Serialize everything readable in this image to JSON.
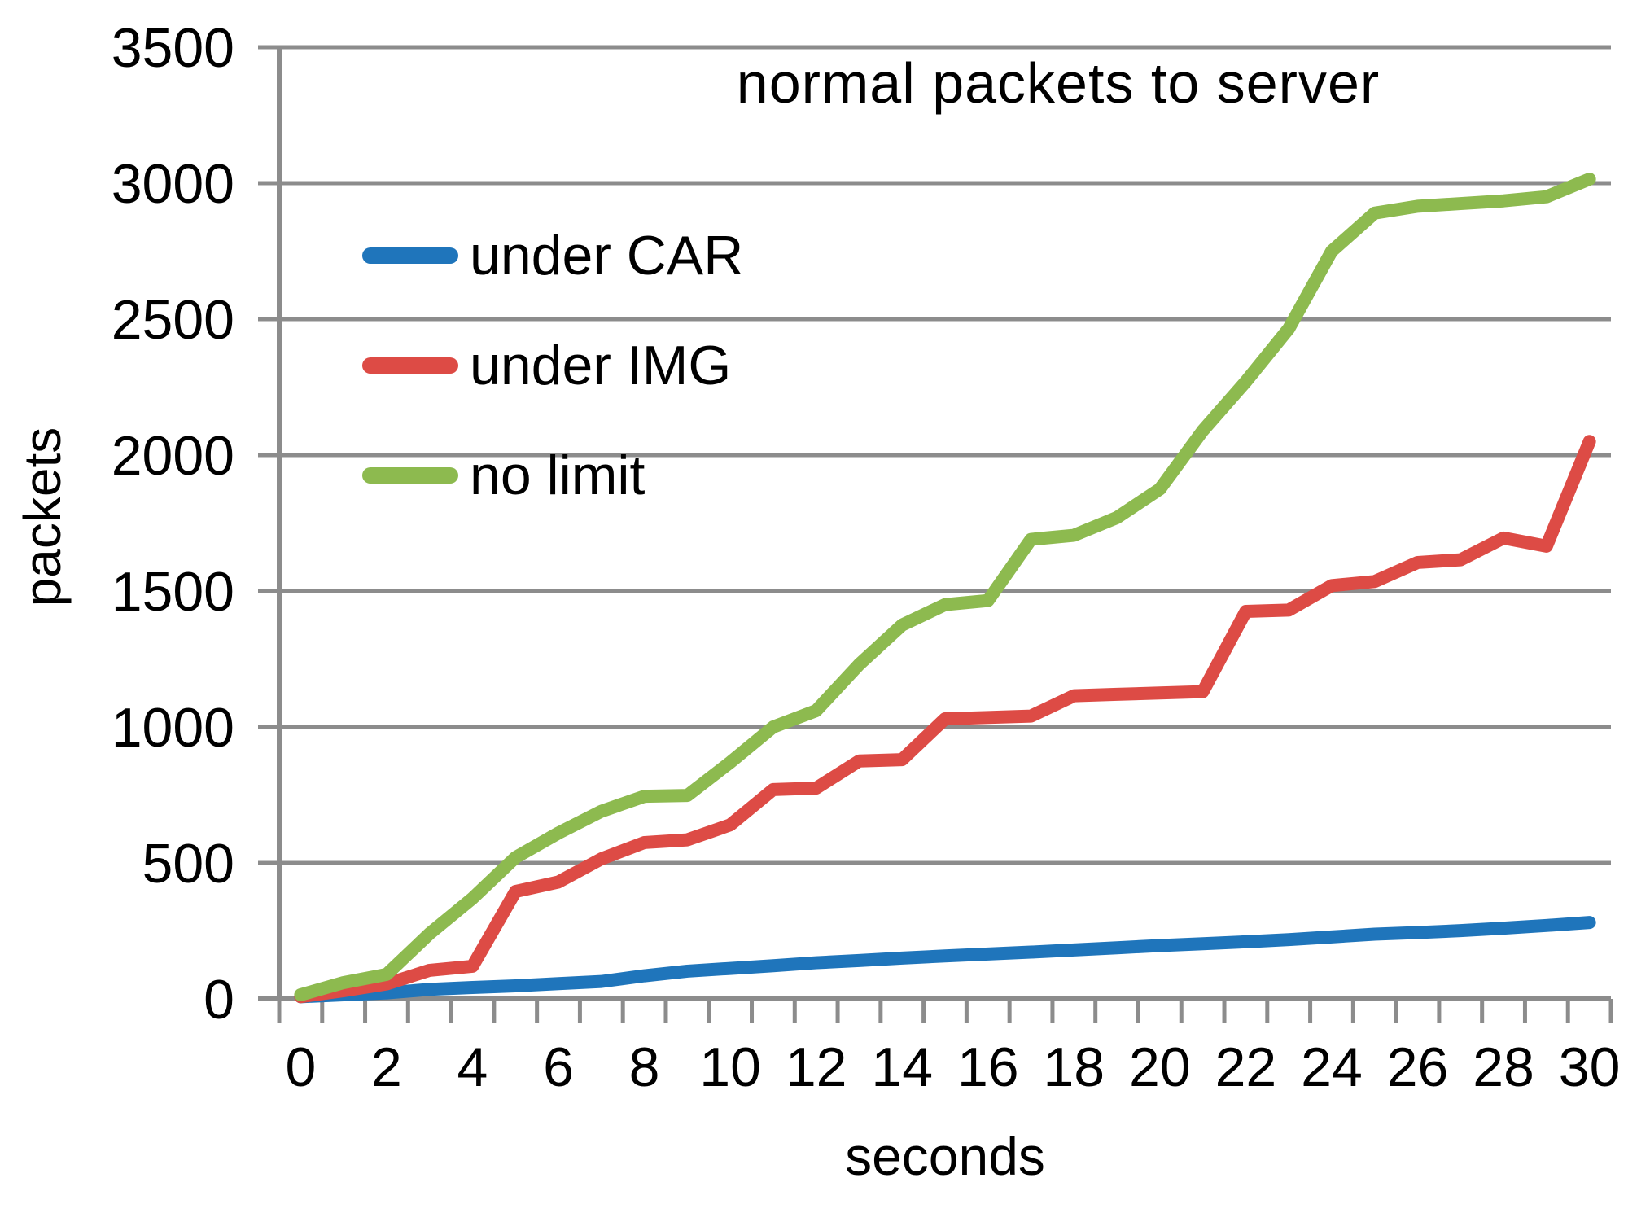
{
  "chart_data": {
    "type": "line",
    "title": "normal packets to server",
    "xlabel": "seconds",
    "ylabel": "packets",
    "x": [
      0,
      1,
      2,
      3,
      4,
      5,
      6,
      7,
      8,
      9,
      10,
      11,
      12,
      13,
      14,
      15,
      16,
      17,
      18,
      19,
      20,
      21,
      22,
      23,
      24,
      25,
      26,
      27,
      28,
      29,
      30
    ],
    "x_tick_step": 2,
    "ylim": [
      0,
      3500
    ],
    "y_tick_step": 500,
    "grid": true,
    "legend_position": "inside-top-left",
    "axis_color": "#8C8C8C",
    "text_color": "#000000",
    "series": [
      {
        "name": "under CAR",
        "color": "#1F75BB",
        "values": [
          8,
          15,
          22,
          35,
          42,
          48,
          56,
          64,
          85,
          102,
          112,
          122,
          133,
          141,
          150,
          158,
          165,
          172,
          180,
          188,
          196,
          203,
          210,
          218,
          228,
          238,
          244,
          251,
          260,
          270,
          281
        ]
      },
      {
        "name": "under IMG",
        "color": "#DD4B45",
        "values": [
          8,
          30,
          55,
          105,
          120,
          395,
          430,
          515,
          575,
          585,
          640,
          770,
          775,
          875,
          880,
          1030,
          1035,
          1040,
          1115,
          1120,
          1125,
          1130,
          1425,
          1430,
          1520,
          1535,
          1605,
          1615,
          1695,
          1665,
          2050
        ]
      },
      {
        "name": "no limit",
        "color": "#8DBA4F",
        "values": [
          15,
          60,
          90,
          240,
          370,
          520,
          610,
          690,
          745,
          748,
          870,
          1000,
          1060,
          1230,
          1375,
          1450,
          1465,
          1690,
          1705,
          1770,
          1875,
          2090,
          2270,
          2465,
          2750,
          2890,
          2915,
          2925,
          2935,
          2950,
          3015
        ]
      }
    ]
  }
}
